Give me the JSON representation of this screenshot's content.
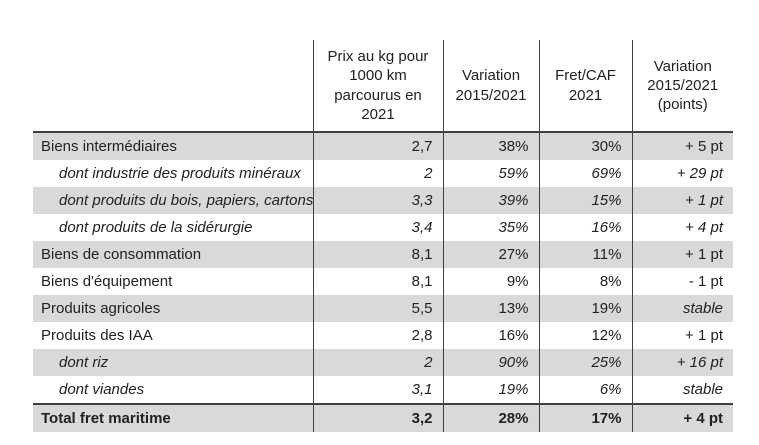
{
  "chart_data": {
    "type": "table",
    "columns": [
      "Prix au kg pour 1000 km parcourus en 2021",
      "Variation 2015/2021",
      "Fret/CAF 2021",
      "Variation 2015/2021 (points)"
    ],
    "rows": [
      {
        "label": "Biens intermédiaires",
        "kind": "category",
        "values": [
          "2,7",
          "38%",
          "30%",
          "+ 5 pt"
        ]
      },
      {
        "label": "dont industrie des produits minéraux",
        "kind": "sub",
        "values": [
          "2",
          "59%",
          "69%",
          "+ 29 pt"
        ]
      },
      {
        "label": "dont produits du bois, papiers, cartons",
        "kind": "sub",
        "values": [
          "3,3",
          "39%",
          "15%",
          "+ 1 pt"
        ]
      },
      {
        "label": "dont produits de la sidérurgie",
        "kind": "sub",
        "values": [
          "3,4",
          "35%",
          "16%",
          "+ 4 pt"
        ]
      },
      {
        "label": "Biens de consommation",
        "kind": "category",
        "values": [
          "8,1",
          "27%",
          "11%",
          "+ 1 pt"
        ]
      },
      {
        "label": "Biens d'équipement",
        "kind": "category",
        "values": [
          "8,1",
          "9%",
          "8%",
          "- 1 pt"
        ]
      },
      {
        "label": "Produits agricoles",
        "kind": "category",
        "values": [
          "5,5",
          "13%",
          "19%",
          "stable"
        ]
      },
      {
        "label": "Produits des IAA",
        "kind": "category",
        "values": [
          "2,8",
          "16%",
          "12%",
          "+ 1 pt"
        ]
      },
      {
        "label": "dont riz",
        "kind": "sub",
        "values": [
          "2",
          "90%",
          "25%",
          "+ 16 pt"
        ]
      },
      {
        "label": "dont viandes",
        "kind": "sub",
        "values": [
          "3,1",
          "19%",
          "6%",
          "stable"
        ]
      },
      {
        "label": "Total fret maritime",
        "kind": "total",
        "values": [
          "3,2",
          "28%",
          "17%",
          "+ 4 pt"
        ]
      }
    ],
    "layout": {
      "row_header_column_has_no_title": true,
      "zebra_start": "shaded",
      "italic_literal_values": [
        "stable"
      ]
    },
    "colors": {
      "row_shade": "#d9d9d9",
      "grid_line": "#3f3f3f",
      "text": "#222222",
      "background": "#ffffff"
    }
  }
}
